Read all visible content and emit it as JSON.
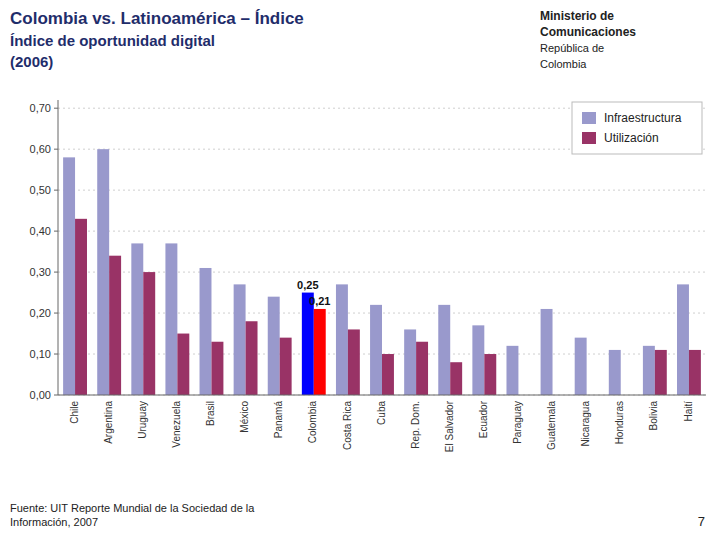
{
  "chart_data": {
    "type": "bar",
    "title": "Colombia vs. Latinoamérica – Índice",
    "subtitle": [
      "Índice de oportunidad digital",
      "(2006)"
    ],
    "annotations": [
      "Ministerio de",
      "Comunicaciones",
      "República de",
      "Colombia",
      "Fuente: UIT Reporte Mundial de la Sociedad de la",
      "Información, 2007",
      "7"
    ],
    "categories": [
      "Chile",
      "Argentina",
      "Uruguay",
      "Venezuela",
      "Brasil",
      "México",
      "Panamá",
      "Colombia",
      "Costa Rica",
      "Cuba",
      "Rep. Dom.",
      "El Salvador",
      "Ecuador",
      "Paraguay",
      "Guatemala",
      "Nicaragua",
      "Honduras",
      "Bolivia",
      "Haití"
    ],
    "series": [
      {
        "name": "Infraestructura",
        "color": "#9999CC",
        "colors": [
          "#9999CC",
          "#9999CC",
          "#9999CC",
          "#9999CC",
          "#9999CC",
          "#9999CC",
          "#9999CC",
          "#0000FF",
          "#9999CC",
          "#9999CC",
          "#9999CC",
          "#9999CC",
          "#9999CC",
          "#9999CC",
          "#9999CC",
          "#9999CC",
          "#9999CC",
          "#9999CC",
          "#9999CC"
        ],
        "values": [
          0.58,
          0.6,
          0.37,
          0.37,
          0.31,
          0.27,
          0.24,
          0.25,
          0.27,
          0.22,
          0.16,
          0.22,
          0.17,
          0.12,
          0.21,
          0.14,
          0.11,
          0.12,
          0.27
        ],
        "value_labels": [
          null,
          null,
          null,
          null,
          null,
          null,
          null,
          "0,25",
          null,
          null,
          null,
          null,
          null,
          null,
          null,
          null,
          null,
          null,
          null
        ]
      },
      {
        "name": "Utilización",
        "color": "#993366",
        "colors": [
          "#993366",
          "#993366",
          "#993366",
          "#993366",
          "#993366",
          "#993366",
          "#993366",
          "#FF0000",
          "#993366",
          "#993366",
          "#993366",
          "#993366",
          "#993366",
          "#993366",
          "#993366",
          "#993366",
          "#993366",
          "#993366",
          "#993366"
        ],
        "values": [
          0.43,
          0.34,
          0.3,
          0.15,
          0.13,
          0.18,
          0.14,
          0.21,
          0.16,
          0.1,
          0.13,
          0.08,
          0.1,
          0.0,
          0.0,
          0.0,
          0.0,
          0.11,
          0.11
        ],
        "value_labels": [
          null,
          null,
          null,
          null,
          null,
          null,
          null,
          "0,21",
          null,
          null,
          null,
          null,
          null,
          null,
          null,
          null,
          null,
          null,
          null
        ]
      }
    ],
    "ylim": [
      0,
      0.72
    ],
    "yticks": [
      {
        "value": 0.0,
        "label": "0,00"
      },
      {
        "value": 0.1,
        "label": "0,10"
      },
      {
        "value": 0.2,
        "label": "0,20"
      },
      {
        "value": 0.3,
        "label": "0,30"
      },
      {
        "value": 0.4,
        "label": "0,40"
      },
      {
        "value": 0.5,
        "label": "0,50"
      },
      {
        "value": 0.6,
        "label": "0,60"
      },
      {
        "value": 0.7,
        "label": "0,70"
      }
    ],
    "grid": true,
    "legend": "upper right",
    "tick_labels": "y"
  }
}
